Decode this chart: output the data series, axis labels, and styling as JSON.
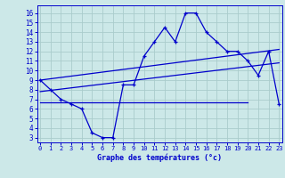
{
  "xlabel": "Graphe des températures (°c)",
  "bg_color": "#cce8e8",
  "grid_color": "#aacccc",
  "line_color": "#0000cc",
  "x_ticks": [
    0,
    1,
    2,
    3,
    4,
    5,
    6,
    7,
    8,
    9,
    10,
    11,
    12,
    13,
    14,
    15,
    16,
    17,
    18,
    19,
    20,
    21,
    22,
    23
  ],
  "y_ticks": [
    3,
    4,
    5,
    6,
    7,
    8,
    9,
    10,
    11,
    12,
    13,
    14,
    15,
    16
  ],
  "ylim": [
    2.5,
    16.8
  ],
  "xlim": [
    -0.3,
    23.3
  ],
  "curve_x": [
    0,
    1,
    2,
    3,
    4,
    5,
    6,
    7,
    8,
    9,
    10,
    11,
    12,
    13,
    14,
    15,
    16,
    17,
    18,
    19,
    20,
    21,
    22,
    23
  ],
  "curve_y": [
    9.0,
    8.0,
    7.0,
    6.5,
    6.0,
    3.5,
    3.0,
    3.0,
    8.5,
    8.5,
    11.5,
    13.0,
    14.5,
    13.0,
    16.0,
    16.0,
    14.0,
    13.0,
    12.0,
    12.0,
    11.0,
    9.5,
    12.0,
    6.5
  ],
  "line1_x": [
    0,
    23
  ],
  "line1_y": [
    9.0,
    12.2
  ],
  "line2_x": [
    0,
    23
  ],
  "line2_y": [
    7.8,
    10.8
  ],
  "line3_x": [
    0,
    20
  ],
  "line3_y": [
    6.7,
    6.7
  ]
}
